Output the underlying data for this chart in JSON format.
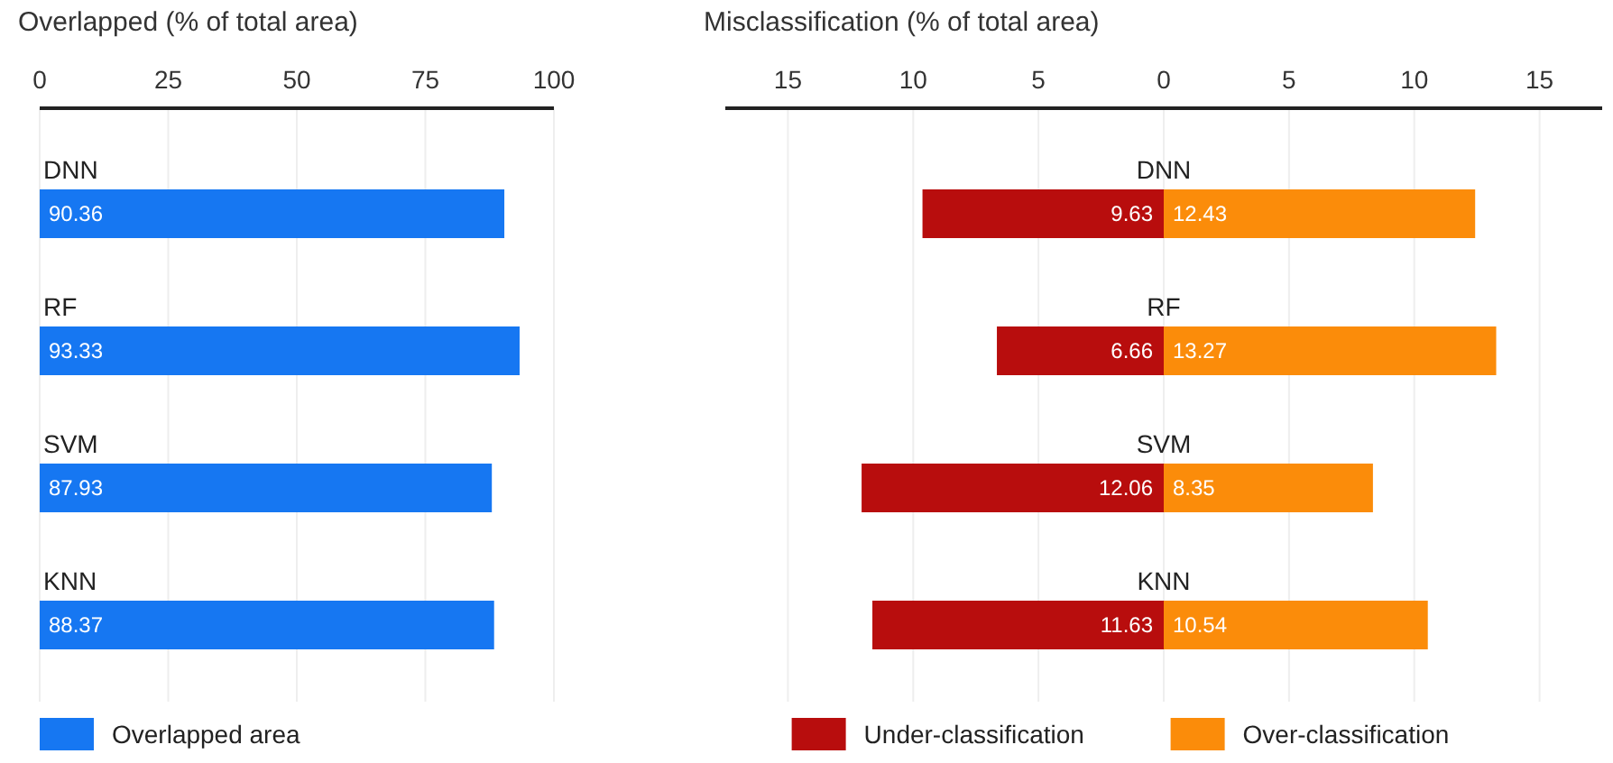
{
  "chart_data": [
    {
      "type": "bar",
      "orientation": "horizontal",
      "title": "Overlapped (% of total area)",
      "categories": [
        "DNN",
        "RF",
        "SVM",
        "KNN"
      ],
      "series": [
        {
          "name": "Overlapped area",
          "color": "#1677f2",
          "values": [
            90.36,
            93.33,
            87.93,
            88.37
          ]
        }
      ],
      "xlim": [
        0,
        100
      ],
      "xticks": [
        0,
        25,
        50,
        75,
        100
      ],
      "grid": "x",
      "legend": "bottom left",
      "data_labels": true
    },
    {
      "type": "bar",
      "orientation": "horizontal",
      "title": "Misclassification (% of total area)",
      "categories": [
        "DNN",
        "RF",
        "SVM",
        "KNN"
      ],
      "series": [
        {
          "name": "Under-classification",
          "color": "#b80d0d",
          "values": [
            9.63,
            6.66,
            12.06,
            11.63
          ],
          "base": [
            -9.63,
            -6.66,
            -12.06,
            -11.63
          ],
          "data_labels": true
        },
        {
          "name": "Over-classification",
          "color": "#fb8c0a",
          "values": [
            12.43,
            13.27,
            8.35,
            10.54
          ],
          "data_labels": true
        }
      ],
      "xlim": [
        -17.5,
        17.5
      ],
      "xticks": [
        {
          "value": -15,
          "label": "15"
        },
        {
          "value": -10,
          "label": "10"
        },
        {
          "value": -5,
          "label": "5"
        },
        0,
        5,
        10,
        15
      ],
      "grid": "x",
      "legend": "bottom"
    }
  ]
}
